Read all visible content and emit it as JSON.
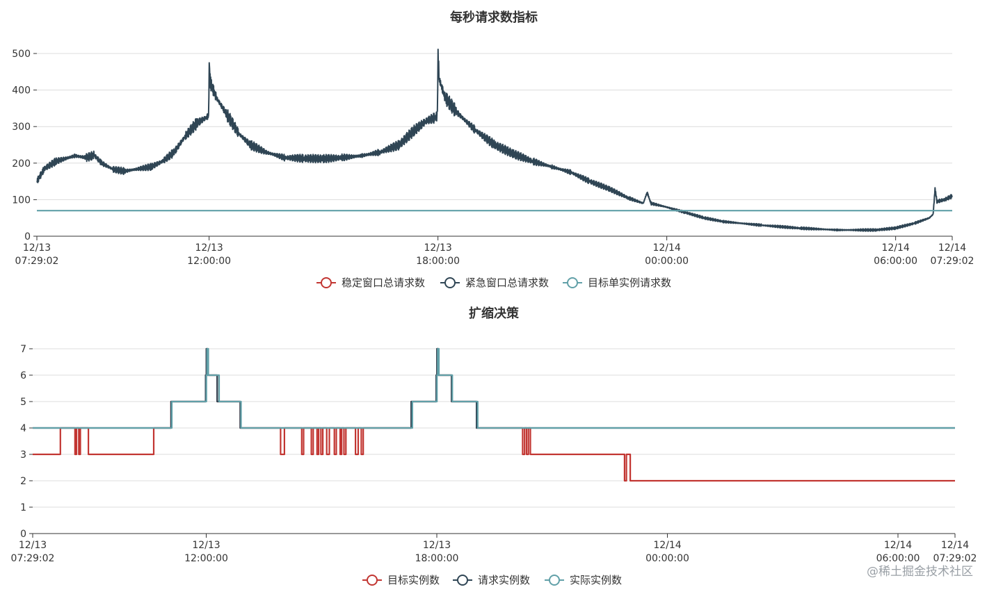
{
  "chart_data": [
    {
      "type": "line",
      "title": "每秒请求数指标",
      "xlabel": "",
      "ylabel": "",
      "ylim": [
        0,
        500
      ],
      "yticks": [
        "0",
        "100",
        "200",
        "300",
        "400",
        "500"
      ],
      "xticks": [
        {
          "t": 0,
          "line1": "12/13",
          "line2": "07:29:02"
        },
        {
          "t": 4.516,
          "line1": "12/13",
          "line2": "12:00:00"
        },
        {
          "t": 10.516,
          "line1": "12/13",
          "line2": "18:00:00"
        },
        {
          "t": 16.516,
          "line1": "12/14",
          "line2": "00:00:00"
        },
        {
          "t": 22.516,
          "line1": "12/14",
          "line2": "06:00:00"
        },
        {
          "t": 24,
          "line1": "12/14",
          "line2": "07:29:02"
        }
      ],
      "x_unit": "hours since 12/13 07:29:02",
      "series": [
        {
          "name": "稳定窗口总请求数",
          "color": "#c23531",
          "points": []
        },
        {
          "name": "紧急窗口总请求数",
          "color": "#2f4554",
          "points": [
            [
              0,
              150
            ],
            [
              0.2,
              185
            ],
            [
              0.5,
              205
            ],
            [
              1.0,
              220
            ],
            [
              1.3,
              215
            ],
            [
              1.5,
              222
            ],
            [
              1.7,
              200
            ],
            [
              2.0,
              183
            ],
            [
              2.3,
              178
            ],
            [
              2.7,
              185
            ],
            [
              3.0,
              190
            ],
            [
              3.3,
              205
            ],
            [
              3.6,
              230
            ],
            [
              3.9,
              275
            ],
            [
              4.2,
              310
            ],
            [
              4.45,
              325
            ],
            [
              4.5,
              330
            ],
            [
              4.52,
              470
            ],
            [
              4.55,
              420
            ],
            [
              4.7,
              380
            ],
            [
              5.0,
              330
            ],
            [
              5.3,
              280
            ],
            [
              5.6,
              250
            ],
            [
              6.0,
              230
            ],
            [
              6.5,
              215
            ],
            [
              7.0,
              213
            ],
            [
              7.5,
              212
            ],
            [
              8.0,
              215
            ],
            [
              8.5,
              220
            ],
            [
              9.0,
              230
            ],
            [
              9.5,
              250
            ],
            [
              9.9,
              290
            ],
            [
              10.2,
              315
            ],
            [
              10.45,
              325
            ],
            [
              10.5,
              330
            ],
            [
              10.52,
              490
            ],
            [
              10.55,
              430
            ],
            [
              10.7,
              380
            ],
            [
              11.0,
              340
            ],
            [
              11.5,
              290
            ],
            [
              12.0,
              250
            ],
            [
              12.5,
              225
            ],
            [
              13.0,
              205
            ],
            [
              13.5,
              190
            ],
            [
              14.0,
              175
            ],
            [
              14.5,
              150
            ],
            [
              15.0,
              130
            ],
            [
              15.5,
              105
            ],
            [
              15.9,
              90
            ],
            [
              16.0,
              120
            ],
            [
              16.1,
              90
            ],
            [
              16.5,
              80
            ],
            [
              17.0,
              65
            ],
            [
              17.5,
              50
            ],
            [
              18.0,
              40
            ],
            [
              19.0,
              30
            ],
            [
              20.0,
              22
            ],
            [
              21.0,
              17
            ],
            [
              22.0,
              17
            ],
            [
              22.5,
              22
            ],
            [
              23.0,
              35
            ],
            [
              23.4,
              50
            ],
            [
              23.5,
              60
            ],
            [
              23.55,
              130
            ],
            [
              23.6,
              95
            ],
            [
              23.8,
              100
            ],
            [
              24,
              110
            ]
          ]
        },
        {
          "name": "目标单实例请求数",
          "color": "#61a0a8",
          "points": [
            [
              0,
              70
            ],
            [
              24,
              70
            ]
          ]
        }
      ]
    },
    {
      "type": "line",
      "title": "扩缩决策",
      "xlabel": "",
      "ylabel": "",
      "ylim": [
        0,
        7
      ],
      "yticks": [
        "0",
        "1",
        "2",
        "3",
        "4",
        "5",
        "6",
        "7"
      ],
      "xticks": [
        {
          "t": 0,
          "line1": "12/13",
          "line2": "07:29:02"
        },
        {
          "t": 4.516,
          "line1": "12/13",
          "line2": "12:00:00"
        },
        {
          "t": 10.516,
          "line1": "12/13",
          "line2": "18:00:00"
        },
        {
          "t": 16.516,
          "line1": "12/14",
          "line2": "00:00:00"
        },
        {
          "t": 22.516,
          "line1": "12/14",
          "line2": "06:00:00"
        },
        {
          "t": 24,
          "line1": "12/14",
          "line2": "07:29:02"
        }
      ],
      "x_unit": "hours since 12/13 07:29:02",
      "series": [
        {
          "name": "目标实例数",
          "color": "#c23531",
          "steps": [
            [
              0,
              3
            ],
            [
              0.72,
              4
            ],
            [
              1.1,
              3
            ],
            [
              1.14,
              4
            ],
            [
              1.2,
              3
            ],
            [
              1.24,
              4
            ],
            [
              1.45,
              3
            ],
            [
              3.15,
              4
            ],
            [
              3.6,
              5
            ],
            [
              4.5,
              6
            ],
            [
              4.52,
              7
            ],
            [
              4.55,
              6
            ],
            [
              4.8,
              5
            ],
            [
              5.4,
              4
            ],
            [
              6.45,
              3
            ],
            [
              6.55,
              4
            ],
            [
              7.0,
              3
            ],
            [
              7.05,
              4
            ],
            [
              7.25,
              3
            ],
            [
              7.3,
              4
            ],
            [
              7.4,
              3
            ],
            [
              7.44,
              4
            ],
            [
              7.5,
              3
            ],
            [
              7.55,
              4
            ],
            [
              7.65,
              3
            ],
            [
              7.72,
              4
            ],
            [
              7.85,
              3
            ],
            [
              7.9,
              4
            ],
            [
              8.0,
              3
            ],
            [
              8.04,
              4
            ],
            [
              8.1,
              3
            ],
            [
              8.15,
              4
            ],
            [
              8.4,
              3
            ],
            [
              8.47,
              4
            ],
            [
              8.55,
              3
            ],
            [
              8.6,
              4
            ],
            [
              9.85,
              5
            ],
            [
              10.5,
              6
            ],
            [
              10.52,
              7
            ],
            [
              10.55,
              6
            ],
            [
              10.9,
              5
            ],
            [
              11.55,
              4
            ],
            [
              12.75,
              3
            ],
            [
              12.8,
              4
            ],
            [
              12.85,
              3
            ],
            [
              12.9,
              4
            ],
            [
              12.95,
              3
            ],
            [
              15.4,
              2
            ],
            [
              15.45,
              3
            ],
            [
              15.55,
              2
            ],
            [
              24,
              2
            ]
          ]
        },
        {
          "name": "请求实例数",
          "color": "#2f4554",
          "steps": [
            [
              0,
              4
            ],
            [
              3.6,
              5
            ],
            [
              4.5,
              6
            ],
            [
              4.52,
              7
            ],
            [
              4.55,
              6
            ],
            [
              4.8,
              5
            ],
            [
              5.4,
              4
            ],
            [
              9.85,
              5
            ],
            [
              10.5,
              6
            ],
            [
              10.52,
              7
            ],
            [
              10.55,
              6
            ],
            [
              10.9,
              5
            ],
            [
              11.55,
              4
            ],
            [
              24,
              4
            ]
          ]
        },
        {
          "name": "实际实例数",
          "color": "#61a0a8",
          "steps": [
            [
              0,
              4
            ],
            [
              3.62,
              5
            ],
            [
              4.52,
              6
            ],
            [
              4.54,
              7
            ],
            [
              4.57,
              6
            ],
            [
              4.85,
              5
            ],
            [
              5.42,
              4
            ],
            [
              9.88,
              5
            ],
            [
              10.52,
              6
            ],
            [
              10.54,
              7
            ],
            [
              10.57,
              6
            ],
            [
              10.92,
              5
            ],
            [
              11.58,
              4
            ],
            [
              24,
              4
            ]
          ]
        }
      ]
    }
  ],
  "watermark": "@稀土掘金技术社区"
}
